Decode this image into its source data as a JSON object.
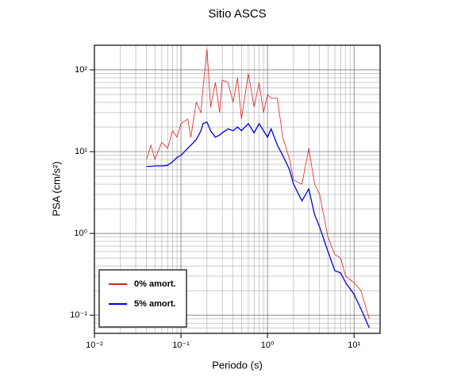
{
  "chart_data": {
    "type": "line",
    "title": "Sitio ASCS",
    "x_label": "Periodo (s)",
    "y_label": "PSA (cm/s²)",
    "log_x": true,
    "log_y": true,
    "grid": true,
    "legend": "lower left",
    "xlim": [
      0.01,
      20
    ],
    "ylim": [
      0.06,
      200
    ],
    "xticks": [
      {
        "value": 0.01,
        "label": "10⁻²"
      },
      {
        "value": 0.1,
        "label": "10⁻¹"
      },
      {
        "value": 1,
        "label": "10⁰"
      },
      {
        "value": 10,
        "label": "10¹"
      }
    ],
    "yticks": [
      {
        "value": 0.1,
        "label": "10⁻¹"
      },
      {
        "value": 1,
        "label": "10⁰"
      },
      {
        "value": 10,
        "label": "10¹"
      },
      {
        "value": 100,
        "label": "10²"
      }
    ],
    "xminor": [
      0.02,
      0.03,
      0.04,
      0.05,
      0.06,
      0.07,
      0.08,
      0.09,
      0.2,
      0.3,
      0.4,
      0.5,
      0.6,
      0.7,
      0.8,
      0.9,
      2,
      3,
      4,
      5,
      6,
      7,
      8,
      9
    ],
    "yminor": [
      0.07,
      0.08,
      0.09,
      0.2,
      0.3,
      0.4,
      0.5,
      0.6,
      0.7,
      0.8,
      0.9,
      2,
      3,
      4,
      5,
      6,
      7,
      8,
      9,
      20,
      30,
      40,
      50,
      60,
      70,
      80,
      90
    ],
    "x": [
      0.04,
      0.045,
      0.05,
      0.06,
      0.07,
      0.08,
      0.09,
      0.1,
      0.12,
      0.13,
      0.15,
      0.17,
      0.18,
      0.2,
      0.22,
      0.25,
      0.28,
      0.3,
      0.35,
      0.4,
      0.45,
      0.5,
      0.6,
      0.7,
      0.8,
      0.9,
      1.0,
      1.1,
      1.3,
      1.5,
      1.8,
      2.0,
      2.5,
      3.0,
      3.5,
      4.0,
      5.0,
      6.0,
      7.0,
      8.0,
      10,
      12,
      15
    ],
    "series": [
      {
        "name": "0% amort.",
        "color": "#e02020",
        "width": 0.8,
        "values": [
          8,
          12,
          8,
          13,
          11,
          18,
          15,
          22,
          25,
          15,
          40,
          30,
          60,
          180,
          35,
          70,
          30,
          75,
          70,
          40,
          80,
          25,
          90,
          35,
          70,
          30,
          50,
          45,
          45,
          15,
          8,
          4.5,
          4,
          11,
          4,
          3,
          0.9,
          0.55,
          0.5,
          0.3,
          0.25,
          0.2,
          0.09
        ]
      },
      {
        "name": "5% amort.",
        "color": "#0000e0",
        "width": 1.3,
        "values": [
          6.6,
          6.6,
          6.7,
          6.7,
          6.8,
          7.5,
          8.5,
          9,
          11,
          12,
          14,
          18,
          22,
          23,
          18,
          15,
          16,
          17,
          19,
          18,
          20,
          18,
          22,
          17,
          22,
          18,
          15,
          19,
          12,
          9,
          6,
          4,
          2.5,
          3.5,
          1.7,
          1.2,
          0.6,
          0.35,
          0.33,
          0.25,
          0.18,
          0.12,
          0.07
        ]
      }
    ]
  }
}
